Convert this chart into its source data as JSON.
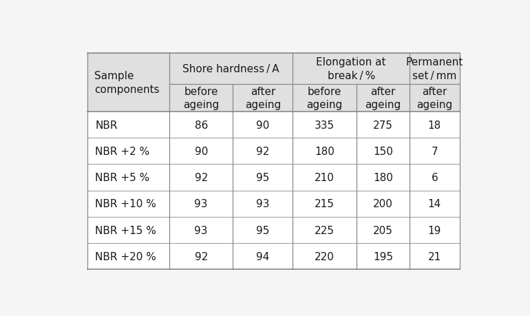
{
  "rows": [
    [
      "NBR",
      "86",
      "90",
      "335",
      "275",
      "18"
    ],
    [
      "NBR +2 %",
      "90",
      "92",
      "180",
      "150",
      "7"
    ],
    [
      "NBR +5 %",
      "92",
      "95",
      "210",
      "180",
      "6"
    ],
    [
      "NBR +10 %",
      "93",
      "93",
      "215",
      "200",
      "14"
    ],
    [
      "NBR +15 %",
      "93",
      "95",
      "225",
      "205",
      "19"
    ],
    [
      "NBR +20 %",
      "92",
      "94",
      "220",
      "195",
      "21"
    ]
  ],
  "header_bg": "#e0e0e0",
  "body_bg": "#ffffff",
  "fig_bg": "#f5f5f5",
  "line_color": "#888888",
  "text_color": "#1a1a1a",
  "font_size": 11,
  "header_font_size": 11
}
